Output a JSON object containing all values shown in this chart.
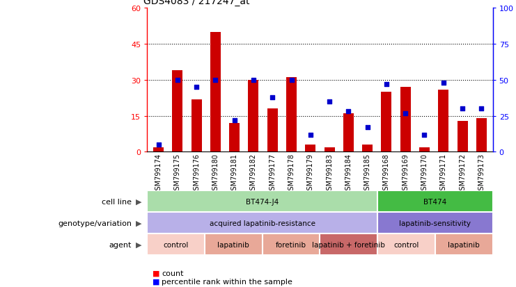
{
  "title": "GDS4083 / 217247_at",
  "samples": [
    "GSM799174",
    "GSM799175",
    "GSM799176",
    "GSM799180",
    "GSM799181",
    "GSM799182",
    "GSM799177",
    "GSM799178",
    "GSM799179",
    "GSM799183",
    "GSM799184",
    "GSM799185",
    "GSM799168",
    "GSM799169",
    "GSM799170",
    "GSM799171",
    "GSM799172",
    "GSM799173"
  ],
  "counts": [
    2,
    34,
    22,
    50,
    12,
    30,
    18,
    31,
    3,
    2,
    16,
    3,
    25,
    27,
    2,
    26,
    13,
    14
  ],
  "percentiles": [
    5,
    50,
    45,
    50,
    22,
    50,
    38,
    50,
    12,
    35,
    28,
    17,
    47,
    27,
    12,
    48,
    30,
    30
  ],
  "ylim_left": [
    0,
    60
  ],
  "ylim_right": [
    0,
    100
  ],
  "yticks_left": [
    0,
    15,
    30,
    45,
    60
  ],
  "yticks_right": [
    0,
    25,
    50,
    75,
    100
  ],
  "bar_color": "#cc0000",
  "dot_color": "#0000cc",
  "cell_line_groups": [
    {
      "label": "BT474-J4",
      "start": 0,
      "end": 12,
      "color": "#aaddaa"
    },
    {
      "label": "BT474",
      "start": 12,
      "end": 18,
      "color": "#44bb44"
    }
  ],
  "genotype_groups": [
    {
      "label": "acquired lapatinib-resistance",
      "start": 0,
      "end": 12,
      "color": "#b8b0e8"
    },
    {
      "label": "lapatinib-sensitivity",
      "start": 12,
      "end": 18,
      "color": "#8878d0"
    }
  ],
  "agent_groups": [
    {
      "label": "control",
      "start": 0,
      "end": 3,
      "color": "#f8d0c8"
    },
    {
      "label": "lapatinib",
      "start": 3,
      "end": 6,
      "color": "#e8a898"
    },
    {
      "label": "foretinib",
      "start": 6,
      "end": 9,
      "color": "#e8a898"
    },
    {
      "label": "lapatinib + foretinib",
      "start": 9,
      "end": 12,
      "color": "#c86868"
    },
    {
      "label": "control",
      "start": 12,
      "end": 15,
      "color": "#f8d0c8"
    },
    {
      "label": "lapatinib",
      "start": 15,
      "end": 18,
      "color": "#e8a898"
    }
  ],
  "row_labels": [
    "cell line",
    "genotype/variation",
    "agent"
  ],
  "bg_color": "#ffffff"
}
